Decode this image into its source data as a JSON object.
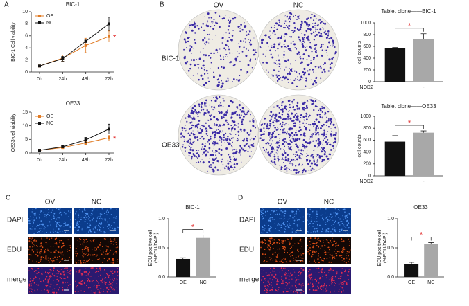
{
  "panels": [
    "A",
    "B",
    "C",
    "D"
  ],
  "images": {
    "B": {
      "columns": [
        "OV",
        "NC"
      ],
      "rows": [
        "BIC-1",
        "OE33"
      ]
    },
    "C": {
      "columns": [
        "OV",
        "NC"
      ],
      "rows": [
        "DAPI",
        "EDU",
        "merge"
      ]
    },
    "D": {
      "columns": [
        "OV",
        "NC"
      ],
      "rows": [
        "DAPI",
        "EDU",
        "merge"
      ]
    }
  },
  "chart_data": [
    {
      "type": "line",
      "title": "BIC-1",
      "ylabel": [
        "BIC-1 Cell viability"
      ],
      "categories": [
        "0h",
        "24h",
        "48h",
        "72h"
      ],
      "ylim": [
        0,
        10
      ],
      "yticks": [
        0,
        2,
        4,
        6,
        8,
        10
      ],
      "annotations": [
        "*"
      ],
      "series": [
        {
          "name": "OE",
          "color": "#e07b24",
          "values": [
            1,
            2.3,
            4.4,
            5.9
          ],
          "errors": [
            0.1,
            0.5,
            1.2,
            0.9
          ]
        },
        {
          "name": "NC",
          "color": "#111111",
          "values": [
            1,
            2.2,
            5.1,
            8.0
          ],
          "errors": [
            0.1,
            0.4,
            0.2,
            1.1
          ]
        }
      ]
    },
    {
      "type": "line",
      "title": "OE33",
      "ylabel": [
        "OE33-cell viability"
      ],
      "categories": [
        "0h",
        "24h",
        "48h",
        "72h"
      ],
      "ylim": [
        0,
        15
      ],
      "yticks": [
        0,
        5,
        10,
        15
      ],
      "annotations": [
        "*"
      ],
      "series": [
        {
          "name": "OE",
          "color": "#e07b24",
          "values": [
            1,
            2,
            3.7,
            5.6
          ],
          "errors": [
            0.1,
            0.3,
            0.6,
            0.8
          ]
        },
        {
          "name": "NC",
          "color": "#111111",
          "values": [
            1,
            2.3,
            4.8,
            8.8
          ],
          "errors": [
            0.1,
            0.4,
            0.9,
            1.8
          ]
        }
      ]
    },
    {
      "type": "bar",
      "title": "Tablet clone——BIC-1",
      "ylabel": [
        "cell counts"
      ],
      "row_label": "NOD2",
      "categories": [
        "+",
        "-"
      ],
      "values": [
        570,
        725
      ],
      "errors": [
        10,
        90
      ],
      "colors": [
        "#111111",
        "#a8a8a8"
      ],
      "ylim": [
        0,
        1000
      ],
      "yticks": [
        0,
        200,
        400,
        600,
        800,
        1000
      ],
      "annotations": [
        "*"
      ]
    },
    {
      "type": "bar",
      "title": "Tablet clone——OE33",
      "ylabel": [
        "cell counts"
      ],
      "row_label": "NOD2",
      "categories": [
        "+",
        "-"
      ],
      "values": [
        575,
        725
      ],
      "errors": [
        100,
        30
      ],
      "colors": [
        "#111111",
        "#a8a8a8"
      ],
      "ylim": [
        0,
        1000
      ],
      "yticks": [
        0,
        200,
        400,
        600,
        800,
        1000
      ],
      "annotations": [
        "*"
      ]
    },
    {
      "type": "bar",
      "title": "BIC-1",
      "ylabel": [
        "EDU positive cell",
        "(%EDU/DAPI)"
      ],
      "categories": [
        "OE",
        "NC"
      ],
      "values": [
        0.31,
        0.67
      ],
      "errors": [
        0.02,
        0.05
      ],
      "colors": [
        "#111111",
        "#a8a8a8"
      ],
      "ylim": [
        0,
        1
      ],
      "yticks": [
        {
          "value": 0,
          "label": "0.0"
        },
        {
          "value": 0.5,
          "label": "0.5"
        },
        {
          "value": 1,
          "label": "1.0"
        }
      ],
      "annotations": [
        "*"
      ]
    },
    {
      "type": "bar",
      "title": "OE33",
      "ylabel": [
        "EDU positive cell",
        "(%EDU/DAPI)"
      ],
      "categories": [
        "OE",
        "NC"
      ],
      "values": [
        0.22,
        0.57
      ],
      "errors": [
        0.03,
        0.02
      ],
      "colors": [
        "#111111",
        "#a8a8a8"
      ],
      "ylim": [
        0,
        1
      ],
      "yticks": [
        {
          "value": 0,
          "label": "0.0"
        },
        {
          "value": 0.5,
          "label": "0.5"
        },
        {
          "value": 1,
          "label": "1.0"
        }
      ],
      "annotations": [
        "*"
      ]
    }
  ]
}
